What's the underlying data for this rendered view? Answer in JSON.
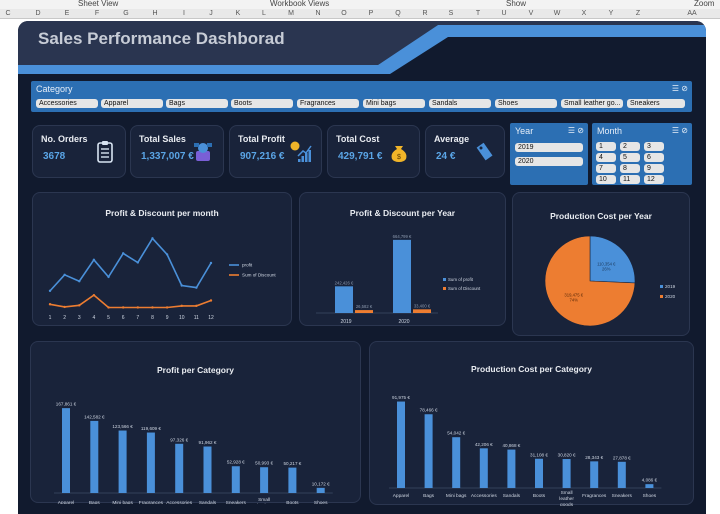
{
  "excel_ribbon": {
    "items": [
      "Sheet View",
      "Workbook Views",
      "Show",
      "Zoom"
    ],
    "columns": [
      "C",
      "D",
      "E",
      "F",
      "G",
      "H",
      "I",
      "J",
      "K",
      "L",
      "M",
      "N",
      "O",
      "P",
      "Q",
      "R",
      "S",
      "T",
      "U",
      "V",
      "W",
      "X",
      "Y",
      "Z",
      "AA"
    ]
  },
  "dashboard": {
    "title": "Sales Performance Dashborad"
  },
  "category_slicer": {
    "title": "Category",
    "items": [
      "Accessories",
      "Apparel",
      "Bags",
      "Boots",
      "Fragrances",
      "Mini bags",
      "Sandals",
      "Shoes",
      "Small leather go...",
      "Sneakers"
    ]
  },
  "year_slicer": {
    "title": "Year",
    "items": [
      "2019",
      "2020"
    ]
  },
  "month_slicer": {
    "title": "Month",
    "items": [
      "1",
      "2",
      "3",
      "4",
      "5",
      "6",
      "7",
      "8",
      "9",
      "10",
      "11",
      "12"
    ]
  },
  "kpis": [
    {
      "label": "No. Orders",
      "value": "3678",
      "icon": "clipboard-icon"
    },
    {
      "label": "Total Sales",
      "value": "1,337,007 €",
      "icon": "cash-register-icon"
    },
    {
      "label": "Total Profit",
      "value": "907,216 €",
      "icon": "profit-growth-icon"
    },
    {
      "label": "Total Cost",
      "value": "429,791 €",
      "icon": "money-bag-icon"
    },
    {
      "label": "Average",
      "value": "24 €",
      "icon": "price-tag-icon"
    }
  ],
  "colors": {
    "accent": "#2c6fb3",
    "bar": "#4a90d9",
    "line_profit": "#4a90d9",
    "line_discount": "#ed7d31",
    "pie_2019": "#4a90d9",
    "pie_2020": "#ed7d31"
  },
  "chart_data": [
    {
      "id": "profit_discount_month",
      "type": "line",
      "title": "Profit & Discount per month",
      "x": [
        "1",
        "2",
        "3",
        "4",
        "5",
        "6",
        "7",
        "8",
        "9",
        "10",
        "11",
        "12"
      ],
      "series": [
        {
          "name": "profit",
          "values": [
            32000,
            62000,
            50000,
            90000,
            58000,
            102000,
            85000,
            130000,
            100000,
            42000,
            38000,
            84000
          ]
        },
        {
          "name": "Sum of Discount",
          "values": [
            7000,
            2000,
            5000,
            24000,
            1000,
            1000,
            1000,
            1000,
            1000,
            4000,
            4000,
            14000
          ]
        }
      ]
    },
    {
      "id": "profit_discount_year",
      "type": "bar",
      "title": "Profit & Discount per Year",
      "categories": [
        "2019",
        "2020"
      ],
      "series": [
        {
          "name": "Sum of profit",
          "values": [
            242426,
            664799
          ],
          "labels": [
            "242,426 €",
            "664,799 €"
          ]
        },
        {
          "name": "Sum of Discount",
          "values": [
            26582,
            33400
          ],
          "labels": [
            "26,582 €",
            "33,400 €"
          ]
        }
      ],
      "ylim": [
        0,
        700000
      ]
    },
    {
      "id": "production_cost_year",
      "type": "pie",
      "title": "Production Cost per Year",
      "categories": [
        "2019",
        "2020"
      ],
      "values": [
        110354,
        319475
      ],
      "labels": [
        "110,354 €\n26%",
        "319,475 €\n74%"
      ]
    },
    {
      "id": "profit_per_category",
      "type": "bar",
      "title": "Profit per Category",
      "categories": [
        "Apparel",
        "Bags",
        "Mini bags",
        "Fragrances",
        "Accessories",
        "Sandals",
        "Sneakers",
        "Small leather goods",
        "Boots",
        "Shoes"
      ],
      "values": [
        167861,
        142582,
        123566,
        119609,
        97326,
        91962,
        52928,
        50993,
        50217,
        10172
      ],
      "labels": [
        "167,861 €",
        "142,582 €",
        "123,566 €",
        "119,609 €",
        "97,326 €",
        "91,962 €",
        "52,928 €",
        "50,993 €",
        "50,217 €",
        "10,172 €"
      ],
      "ylim": [
        0,
        180000
      ]
    },
    {
      "id": "production_cost_per_category",
      "type": "bar",
      "title": "Production Cost per Category",
      "categories": [
        "Apparel",
        "Bags",
        "Mini bags",
        "Accessories",
        "Sandals",
        "Boots",
        "Small leather goods",
        "Fragrances",
        "Sneakers",
        "Shoes"
      ],
      "values": [
        91975,
        78466,
        54042,
        42206,
        40868,
        31108,
        30820,
        28343,
        27878,
        4086
      ],
      "labels": [
        "91,975 €",
        "78,466 €",
        "54,042 €",
        "42,206 €",
        "40,868 €",
        "31,108 €",
        "30,820 €",
        "28,343 €",
        "27,878 €",
        "4,086 €"
      ],
      "ylim": [
        0,
        100000
      ]
    }
  ]
}
